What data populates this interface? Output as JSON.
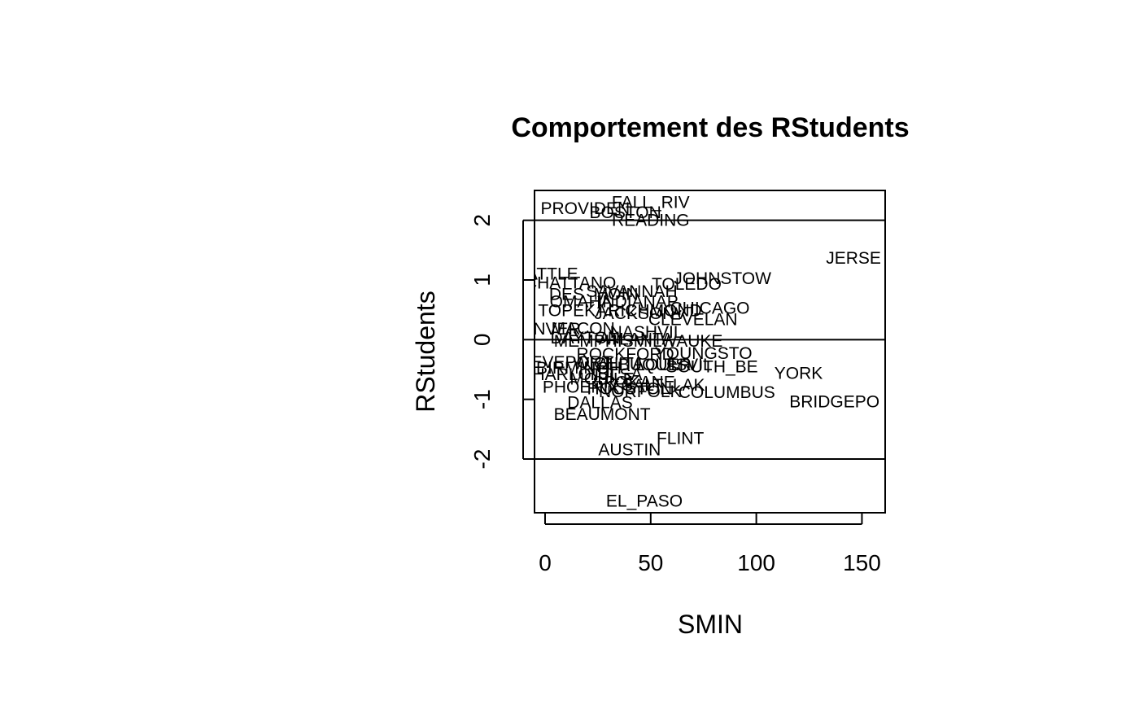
{
  "chart_data": {
    "type": "scatter",
    "title": "Comportement des RStudents",
    "xlabel": "SMIN",
    "ylabel": "RStudents",
    "xlim": [
      -5,
      161
    ],
    "ylim": [
      -2.9,
      2.5
    ],
    "xticks": [
      0,
      50,
      100,
      150
    ],
    "yticks": [
      -2,
      -1,
      0,
      1,
      2
    ],
    "hlines": [
      -2,
      0,
      2
    ],
    "grid": false,
    "point_style": "text-labels",
    "points": [
      {
        "label": "FALL_RIV",
        "x": 50,
        "y": 2.3
      },
      {
        "label": "PROVIDEN",
        "x": 19,
        "y": 2.2
      },
      {
        "label": "BOSTON",
        "x": 38,
        "y": 2.13
      },
      {
        "label": "READING",
        "x": 50,
        "y": 2.0
      },
      {
        "label": "JERSE",
        "x": 146,
        "y": 1.37
      },
      {
        "label": "SEATTLE",
        "x": -2,
        "y": 1.1
      },
      {
        "label": "CHATTANO",
        "x": 12,
        "y": 0.95
      },
      {
        "label": "JOHNSTOW",
        "x": 84,
        "y": 1.03
      },
      {
        "label": "TOLEDO",
        "x": 67,
        "y": 0.93
      },
      {
        "label": "SAVANNAH",
        "x": 41,
        "y": 0.81
      },
      {
        "label": "DES_MOIN",
        "x": 23,
        "y": 0.76
      },
      {
        "label": "OMAHA",
        "x": 17,
        "y": 0.64
      },
      {
        "label": "INDIANAP",
        "x": 44,
        "y": 0.64
      },
      {
        "label": "TOPEKA",
        "x": 13,
        "y": 0.49
      },
      {
        "label": "CHICAGO",
        "x": 78,
        "y": 0.53
      },
      {
        "label": "RICHMOND",
        "x": 52,
        "y": 0.49
      },
      {
        "label": "JACKSONV",
        "x": 45,
        "y": 0.44
      },
      {
        "label": "CLEVELAN",
        "x": 70,
        "y": 0.34
      },
      {
        "label": "DENVER",
        "x": 0,
        "y": 0.18
      },
      {
        "label": "MACON",
        "x": 18,
        "y": 0.19
      },
      {
        "label": "NASHVIL",
        "x": 48,
        "y": 0.13
      },
      {
        "label": "DAYTON",
        "x": 19,
        "y": 0.03
      },
      {
        "label": "MEMPHIS",
        "x": 23,
        "y": -0.02
      },
      {
        "label": "ATLANTA",
        "x": 43,
        "y": 0.01
      },
      {
        "label": "MILWAUKE",
        "x": 63,
        "y": -0.02
      },
      {
        "label": "ROCKFORD",
        "x": 38,
        "y": -0.24
      },
      {
        "label": "YOUNGSTO",
        "x": 75,
        "y": -0.23
      },
      {
        "label": "SHREVEPORT",
        "x": 4,
        "y": -0.38
      },
      {
        "label": "WICHITA",
        "x": 30,
        "y": -0.4
      },
      {
        "label": "ALBUQUER",
        "x": 47,
        "y": -0.42
      },
      {
        "label": "LOUISVIL",
        "x": 61,
        "y": -0.42
      },
      {
        "label": "SOUTH_BE",
        "x": 79,
        "y": -0.45
      },
      {
        "label": "BIRMINGH",
        "x": 16,
        "y": -0.47
      },
      {
        "label": "CHARLOTT",
        "x": 10,
        "y": -0.58
      },
      {
        "label": "TULSA",
        "x": 33,
        "y": -0.58
      },
      {
        "label": "YORK",
        "x": 120,
        "y": -0.56
      },
      {
        "label": "MOBILE",
        "x": 27,
        "y": -0.66
      },
      {
        "label": "SPOKANE",
        "x": 42,
        "y": -0.71
      },
      {
        "label": "SALT_LAK",
        "x": 56,
        "y": -0.76
      },
      {
        "label": "PHOENIX",
        "x": 17,
        "y": -0.79
      },
      {
        "label": "HOUSTON",
        "x": 40,
        "y": -0.82
      },
      {
        "label": "NORFOLK",
        "x": 45,
        "y": -0.87
      },
      {
        "label": "COLUMBUS",
        "x": 86,
        "y": -0.88
      },
      {
        "label": "BRIDGEPO",
        "x": 137,
        "y": -1.04
      },
      {
        "label": "DALLAS",
        "x": 26,
        "y": -1.05
      },
      {
        "label": "BEAUMONT",
        "x": 27,
        "y": -1.25
      },
      {
        "label": "FLINT",
        "x": 64,
        "y": -1.65
      },
      {
        "label": "AUSTIN",
        "x": 40,
        "y": -1.84
      },
      {
        "label": "EL_PASO",
        "x": 47,
        "y": -2.7
      }
    ]
  }
}
